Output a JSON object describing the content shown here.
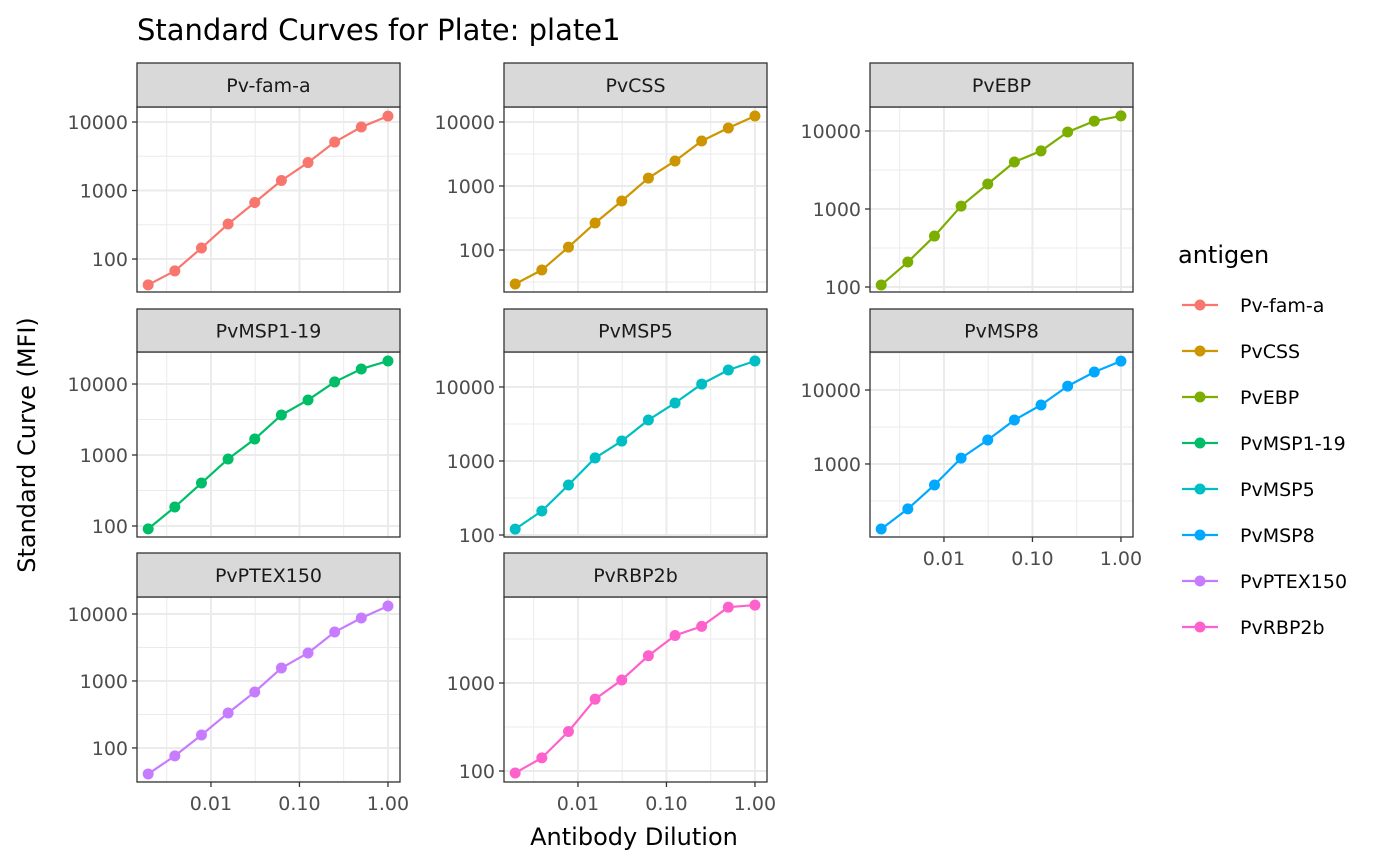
{
  "chart_data": {
    "type": "line",
    "title": "Standard Curves for Plate: plate1",
    "xlabel": "Antibody Dilution",
    "ylabel": "Standard Curve (MFI)",
    "x_scale": "log10",
    "y_scale": "log10",
    "xlim": [
      0.00146,
      1.368
    ],
    "x_ticks": [
      0.01,
      0.1,
      1
    ],
    "x_tick_labels": [
      "0.01",
      "0.10",
      "1.00"
    ],
    "x": [
      0.001953,
      0.003906,
      0.007813,
      0.015625,
      0.03125,
      0.0625,
      0.125,
      0.25,
      0.5,
      1
    ],
    "grid": true,
    "legend": {
      "title": "antigen",
      "position": "right"
    },
    "facets": [
      {
        "name": "Pv-fam-a",
        "color": "#F8766D",
        "ylim": [
          33,
          16570
        ],
        "y_ticks": [
          100,
          1000,
          10000
        ],
        "y_tick_labels": [
          "100",
          "1000",
          "10000"
        ],
        "values": [
          42,
          67,
          145,
          324,
          668,
          1400,
          2560,
          5100,
          8450,
          12200
        ]
      },
      {
        "name": "PvCSS",
        "color": "#CD9600",
        "ylim": [
          22.1,
          17140
        ],
        "y_ticks": [
          100,
          1000,
          10000
        ],
        "y_tick_labels": [
          "100",
          "1000",
          "10000"
        ],
        "values": [
          29.5,
          48.7,
          111,
          264,
          583,
          1330,
          2460,
          5050,
          8060,
          12400
        ]
      },
      {
        "name": "PvEBP",
        "color": "#7CAE00",
        "ylim": [
          86.3,
          20300
        ],
        "y_ticks": [
          100,
          1000,
          10000
        ],
        "y_tick_labels": [
          "100",
          "1000",
          "10000"
        ],
        "values": [
          106,
          209,
          450,
          1090,
          2090,
          4000,
          5550,
          9700,
          13400,
          15600
        ]
      },
      {
        "name": "PvMSP1-19",
        "color": "#00BE67",
        "ylim": [
          70,
          28250
        ],
        "y_ticks": [
          100,
          1000,
          10000
        ],
        "y_tick_labels": [
          "100",
          "1000",
          "10000"
        ],
        "values": [
          91,
          185,
          403,
          880,
          1680,
          3660,
          5960,
          10700,
          16300,
          21100
        ]
      },
      {
        "name": "PvMSP5",
        "color": "#00BFC4",
        "ylim": [
          94,
          29700
        ],
        "y_ticks": [
          100,
          1000,
          10000
        ],
        "y_tick_labels": [
          "100",
          "1000",
          "10000"
        ],
        "values": [
          120,
          211,
          474,
          1100,
          1860,
          3580,
          6080,
          10950,
          16970,
          22450
        ]
      },
      {
        "name": "PvMSP8",
        "color": "#00A9FF",
        "ylim": [
          103,
          32650
        ],
        "y_ticks": [
          1000,
          10000
        ],
        "y_tick_labels": [
          "1000",
          "10000"
        ],
        "values": [
          132,
          247,
          520,
          1200,
          2110,
          3930,
          6270,
          11300,
          17500,
          24600
        ]
      },
      {
        "name": "PvPTEX150",
        "color": "#C77CFF",
        "ylim": [
          31,
          17950
        ],
        "y_ticks": [
          100,
          1000,
          10000
        ],
        "y_tick_labels": [
          "100",
          "1000",
          "10000"
        ],
        "values": [
          40.9,
          76,
          156,
          333,
          685,
          1560,
          2620,
          5380,
          8720,
          13160
        ]
      },
      {
        "name": "PvRBP2b",
        "color": "#FF61CC",
        "ylim": [
          75,
          9490
        ],
        "y_ticks": [
          100,
          1000
        ],
        "y_tick_labels": [
          "100",
          "1000"
        ],
        "values": [
          95,
          141,
          281,
          655,
          1083,
          2040,
          3470,
          4400,
          7270,
          7680
        ]
      }
    ]
  }
}
